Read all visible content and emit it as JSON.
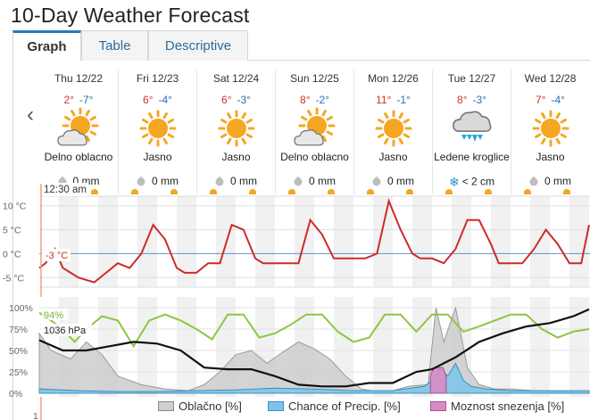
{
  "page": {
    "title": "10-Day Weather Forecast"
  },
  "tabs": [
    {
      "label": "Graph",
      "active": true
    },
    {
      "label": "Table",
      "active": false
    },
    {
      "label": "Descriptive",
      "active": false
    }
  ],
  "nav": {
    "prev_icon": "chevron-left-icon"
  },
  "days": [
    {
      "name": "Thu 12/22",
      "hi": "2°",
      "lo": "-7°",
      "icon": "partly-cloudy-icon",
      "condition": "Delno oblacno",
      "precip": "0 mm",
      "precip_icon": "raindrop-icon"
    },
    {
      "name": "Fri 12/23",
      "hi": "6°",
      "lo": "-4°",
      "icon": "sun-icon",
      "condition": "Jasno",
      "precip": "0 mm",
      "precip_icon": "raindrop-icon"
    },
    {
      "name": "Sat 12/24",
      "hi": "6°",
      "lo": "-3°",
      "icon": "sun-icon",
      "condition": "Jasno",
      "precip": "0 mm",
      "precip_icon": "raindrop-icon"
    },
    {
      "name": "Sun 12/25",
      "hi": "8°",
      "lo": "-2°",
      "icon": "partly-cloudy-icon",
      "condition": "Delno oblacno",
      "precip": "0 mm",
      "precip_icon": "raindrop-icon"
    },
    {
      "name": "Mon 12/26",
      "hi": "11°",
      "lo": "-1°",
      "icon": "sun-icon",
      "condition": "Jasno",
      "precip": "0 mm",
      "precip_icon": "raindrop-icon"
    },
    {
      "name": "Tue 12/27",
      "hi": "8°",
      "lo": "-3°",
      "icon": "sleet-icon",
      "condition": "Ledene kroglice",
      "precip": "< 2 cm",
      "precip_icon": "snowflake-icon"
    },
    {
      "name": "Wed 12/28",
      "hi": "7°",
      "lo": "-4°",
      "icon": "sun-icon",
      "condition": "Jasno",
      "precip": "0 mm",
      "precip_icon": "raindrop-icon"
    }
  ],
  "chart_data": [
    {
      "type": "line",
      "time_label": "12:30 am",
      "yaxis_ticks": [
        "10 °C",
        "5 °C",
        "0 °C",
        "-5 °C"
      ],
      "ylim": [
        -7,
        12
      ],
      "current_value_label": "-3 °C",
      "series": [
        {
          "color": "#cc2b2b",
          "x_days": [
            0,
            0.08,
            0.2,
            0.3,
            0.4,
            0.5,
            0.7,
            0.85,
            1.0,
            1.15,
            1.3,
            1.45,
            1.6,
            1.75,
            1.85,
            2.0,
            2.15,
            2.3,
            2.45,
            2.6,
            2.75,
            2.85,
            3.0,
            3.15,
            3.3,
            3.45,
            3.6,
            3.75,
            3.85,
            4.0,
            4.15,
            4.3,
            4.45,
            4.6,
            4.75,
            4.85,
            5.0,
            5.15,
            5.3,
            5.45,
            5.6,
            5.75,
            5.85,
            6.0,
            6.15,
            6.3,
            6.45,
            6.6,
            6.75,
            6.9,
            7.0
          ],
          "values": [
            -3,
            -2,
            1,
            -3,
            -4,
            -5,
            -6,
            -4,
            -2,
            -3,
            0,
            6,
            3,
            -3,
            -4,
            -4,
            -2,
            -2,
            6,
            5,
            -1,
            -2,
            -2,
            -2,
            -2,
            7,
            4,
            -1,
            -1,
            -1,
            -1,
            0,
            11,
            5,
            0,
            -1,
            -1,
            -2,
            1,
            7,
            7,
            2,
            -2,
            -2,
            -2,
            1,
            5,
            2,
            -2,
            -2,
            6
          ]
        }
      ]
    },
    {
      "type": "area",
      "yaxis_ticks": [
        "100%",
        "75%",
        "50%",
        "25%",
        "0%"
      ],
      "ylim": [
        0,
        100
      ],
      "labels": {
        "humidity_now": "94%",
        "pressure_now": "1036 hPa",
        "bottom_tick": "1"
      },
      "series": [
        {
          "name": "Oblačno [%]",
          "color": "#c9c9c9",
          "x_days": [
            0,
            0.15,
            0.4,
            0.6,
            0.8,
            1.0,
            1.3,
            1.6,
            1.9,
            2.1,
            2.3,
            2.5,
            2.7,
            2.9,
            3.1,
            3.3,
            3.5,
            3.7,
            3.9,
            4.1,
            4.3,
            4.5,
            4.7,
            4.95,
            5.05,
            5.15,
            5.3,
            5.45,
            5.6,
            5.8,
            6.0,
            6.3,
            6.6,
            7.0
          ],
          "values": [
            70,
            50,
            40,
            60,
            45,
            20,
            10,
            5,
            3,
            10,
            25,
            45,
            50,
            35,
            48,
            60,
            52,
            40,
            20,
            5,
            2,
            3,
            8,
            10,
            100,
            60,
            100,
            30,
            10,
            5,
            5,
            3,
            2,
            2
          ]
        },
        {
          "name": "Chance of Precip. [%]",
          "color": "#5bb4e0",
          "x_days": [
            0,
            0.5,
            1.0,
            1.5,
            2.0,
            2.5,
            3.0,
            3.5,
            4.0,
            4.5,
            4.9,
            5.0,
            5.1,
            5.2,
            5.3,
            5.4,
            5.5,
            5.7,
            6.0,
            6.5,
            7.0
          ],
          "values": [
            5,
            3,
            2,
            2,
            3,
            4,
            6,
            5,
            3,
            3,
            8,
            15,
            30,
            20,
            35,
            15,
            8,
            5,
            3,
            3,
            3
          ]
        },
        {
          "name": "Moznost snezenja [%]",
          "color": "#d676b8",
          "x_days": [
            4.98,
            5.02,
            5.06,
            5.1,
            5.14,
            5.18
          ],
          "values": [
            20,
            30,
            30,
            30,
            30,
            20
          ]
        }
      ],
      "lines": [
        {
          "quantity": "humidity",
          "color": "#8cc63f",
          "x_days": [
            0,
            0.15,
            0.3,
            0.45,
            0.6,
            0.8,
            1.0,
            1.2,
            1.4,
            1.6,
            1.8,
            2.0,
            2.2,
            2.4,
            2.6,
            2.8,
            3.0,
            3.2,
            3.4,
            3.6,
            3.8,
            4.0,
            4.2,
            4.4,
            4.6,
            4.8,
            5.0,
            5.2,
            5.4,
            5.6,
            5.8,
            6.0,
            6.2,
            6.4,
            6.6,
            6.8,
            7.0
          ],
          "values": [
            94,
            85,
            75,
            60,
            75,
            90,
            85,
            55,
            85,
            92,
            85,
            75,
            63,
            92,
            92,
            65,
            70,
            80,
            92,
            92,
            72,
            60,
            65,
            92,
            92,
            72,
            92,
            92,
            72,
            78,
            85,
            92,
            92,
            75,
            65,
            72,
            75
          ]
        },
        {
          "quantity": "pressure",
          "color": "#111111",
          "x_days": [
            0,
            0.3,
            0.6,
            0.9,
            1.2,
            1.5,
            1.8,
            2.1,
            2.4,
            2.7,
            3.0,
            3.3,
            3.6,
            3.9,
            4.2,
            4.5,
            4.8,
            5.0,
            5.3,
            5.6,
            5.9,
            6.2,
            6.5,
            6.8,
            7.0
          ],
          "values": [
            62,
            50,
            50,
            55,
            60,
            58,
            50,
            30,
            28,
            28,
            20,
            10,
            8,
            8,
            12,
            12,
            25,
            28,
            42,
            60,
            70,
            78,
            82,
            90,
            98
          ]
        }
      ]
    }
  ],
  "legend": [
    {
      "label": "Oblačno [%]",
      "color": "#c9c9c9"
    },
    {
      "label": "Chance of Precip. [%]",
      "color": "#5bb4e0"
    },
    {
      "label": "Moznost snezenja [%]",
      "color": "#d676b8"
    }
  ]
}
